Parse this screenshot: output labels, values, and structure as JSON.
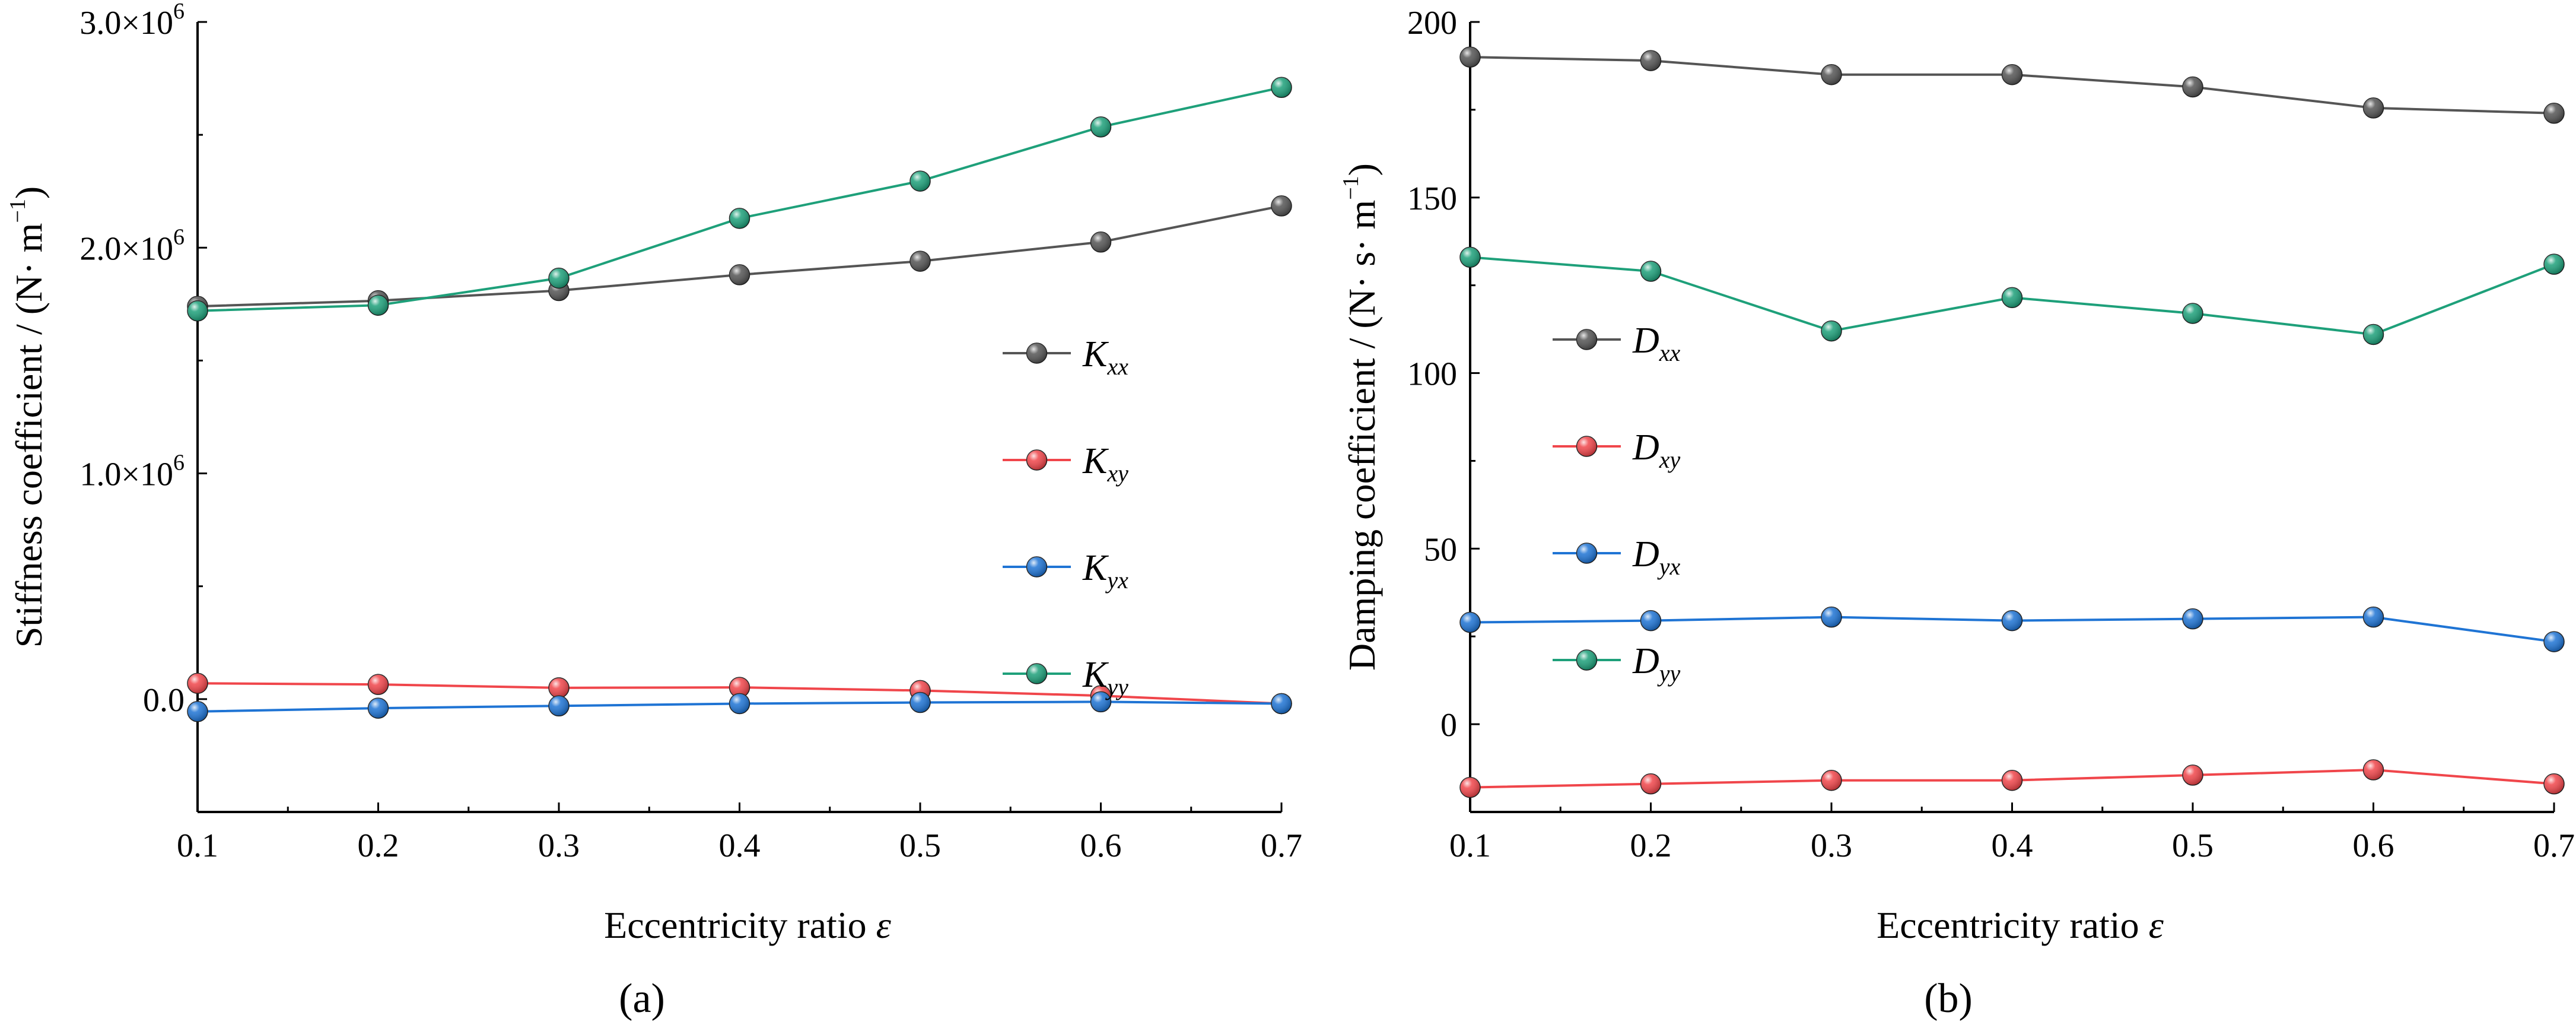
{
  "chart_data": [
    {
      "type": "line",
      "panel_label": "(a)",
      "xlabel": "Eccentricity ratio",
      "xlabel_symbol": "ε",
      "ylabel": "Stiffness coefficient / (N· m",
      "ylabel_exp": "−1",
      "ylabel_close": ")",
      "x": [
        0.1,
        0.2,
        0.3,
        0.4,
        0.5,
        0.6,
        0.7
      ],
      "xlim": [
        0.1,
        0.7
      ],
      "ylim": [
        -500000,
        3000000
      ],
      "xtick_labels": [
        "0.1",
        "0.2",
        "0.3",
        "0.4",
        "0.5",
        "0.6",
        "0.7"
      ],
      "yticks": [
        {
          "value": 0,
          "label": "0.0",
          "exp": ""
        },
        {
          "value": 1000000,
          "label": "1.0×10",
          "exp": "6"
        },
        {
          "value": 2000000,
          "label": "2.0×10",
          "exp": "6"
        },
        {
          "value": 3000000,
          "label": "3.0×10",
          "exp": "6"
        }
      ],
      "legend_position": "center-right",
      "series": [
        {
          "name": "Kxx",
          "sym": "K",
          "subscript": "xx",
          "color": "#555555",
          "values": [
            1740000,
            1765000,
            1810000,
            1880000,
            1940000,
            2025000,
            2185000
          ]
        },
        {
          "name": "Kxy",
          "sym": "K",
          "subscript": "xy",
          "color": "#f0464b",
          "values": [
            70000,
            65000,
            50000,
            52000,
            38000,
            15000,
            -20000
          ]
        },
        {
          "name": "Kyx",
          "sym": "K",
          "subscript": "yx",
          "color": "#1f74d4",
          "values": [
            -55000,
            -40000,
            -30000,
            -20000,
            -15000,
            -12000,
            -20000
          ]
        },
        {
          "name": "Kyy",
          "sym": "K",
          "subscript": "yy",
          "color": "#1ea07a",
          "values": [
            1720000,
            1745000,
            1865000,
            2130000,
            2295000,
            2535000,
            2710000
          ]
        }
      ]
    },
    {
      "type": "line",
      "panel_label": "(b)",
      "xlabel": "Eccentricity ratio",
      "xlabel_symbol": "ε",
      "ylabel": "Damping coefficient / (N· s· m",
      "ylabel_exp": "−1",
      "ylabel_close": ")",
      "x": [
        0.1,
        0.2,
        0.3,
        0.4,
        0.5,
        0.6,
        0.7
      ],
      "xlim": [
        0.1,
        0.7
      ],
      "ylim": [
        -25,
        200
      ],
      "xtick_labels": [
        "0.1",
        "0.2",
        "0.3",
        "0.4",
        "0.5",
        "0.6",
        "0.7"
      ],
      "yticks": [
        {
          "value": 0,
          "label": "0",
          "exp": ""
        },
        {
          "value": 50,
          "label": "50",
          "exp": ""
        },
        {
          "value": 100,
          "label": "100",
          "exp": ""
        },
        {
          "value": 150,
          "label": "150",
          "exp": ""
        },
        {
          "value": 200,
          "label": "200",
          "exp": ""
        }
      ],
      "legend_position": "center-left",
      "series": [
        {
          "name": "Dxx",
          "sym": "D",
          "subscript": "xx",
          "color": "#555555",
          "values": [
            190,
            189,
            185,
            185,
            181.5,
            175.5,
            174
          ]
        },
        {
          "name": "Dxy",
          "sym": "D",
          "subscript": "xy",
          "color": "#f0464b",
          "values": [
            -18,
            -17,
            -16,
            -16,
            -14.5,
            -13,
            -17
          ]
        },
        {
          "name": "Dyx",
          "sym": "D",
          "subscript": "yx",
          "color": "#1f74d4",
          "values": [
            29,
            29.5,
            30.5,
            29.5,
            30,
            30.5,
            23.5
          ]
        },
        {
          "name": "Dyy",
          "sym": "D",
          "subscript": "yy",
          "color": "#1ea07a",
          "values": [
            133,
            129,
            112,
            121.5,
            117,
            111,
            131
          ]
        }
      ]
    }
  ]
}
